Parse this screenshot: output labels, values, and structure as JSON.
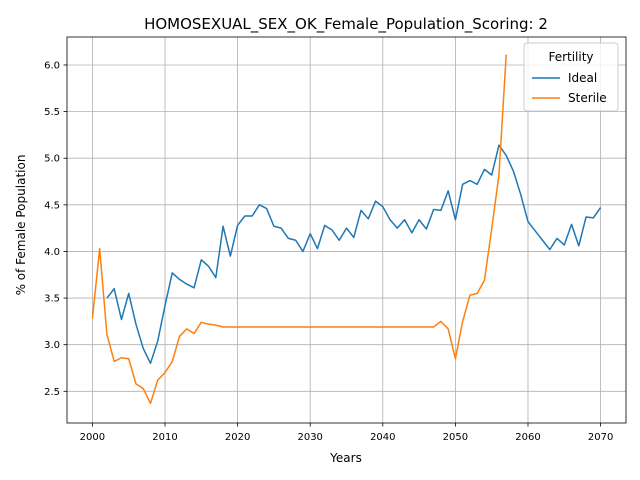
{
  "chart_data": {
    "type": "line",
    "title": "HOMOSEXUAL_SEX_OK_Female_Population_Scoring: 2",
    "xlabel": "Years",
    "ylabel": "% of Female Population",
    "xlim": [
      1996.5,
      2073.5
    ],
    "ylim": [
      2.16,
      6.3
    ],
    "xticks": [
      2000,
      2010,
      2020,
      2030,
      2040,
      2050,
      2060,
      2070
    ],
    "yticks": [
      2.5,
      3.0,
      3.5,
      4.0,
      4.5,
      5.0,
      5.5,
      6.0
    ],
    "ytick_labels": [
      "2.5",
      "3.0",
      "3.5",
      "4.0",
      "4.5",
      "5.0",
      "5.5",
      "6.0"
    ],
    "grid": true,
    "legend": {
      "title": "Fertility",
      "placement": "top-right"
    },
    "series": [
      {
        "name": "Ideal",
        "color": "#1f77b4",
        "x": [
          2002,
          2003,
          2004,
          2005,
          2006,
          2007,
          2008,
          2009,
          2010,
          2011,
          2012,
          2013,
          2014,
          2015,
          2016,
          2017,
          2018,
          2019,
          2020,
          2021,
          2022,
          2023,
          2024,
          2025,
          2026,
          2027,
          2028,
          2029,
          2030,
          2031,
          2032,
          2033,
          2034,
          2035,
          2036,
          2037,
          2038,
          2039,
          2040,
          2041,
          2042,
          2043,
          2044,
          2045,
          2046,
          2047,
          2048,
          2049,
          2050,
          2051,
          2052,
          2053,
          2054,
          2055,
          2056,
          2057,
          2058,
          2059,
          2060,
          2061,
          2062,
          2063,
          2064,
          2065,
          2066,
          2067,
          2068,
          2069,
          2070
        ],
        "values": [
          3.5,
          3.6,
          3.27,
          3.55,
          3.22,
          2.96,
          2.8,
          3.04,
          3.42,
          3.77,
          3.7,
          3.65,
          3.61,
          3.91,
          3.84,
          3.72,
          4.27,
          3.95,
          4.28,
          4.38,
          4.38,
          4.5,
          4.46,
          4.27,
          4.25,
          4.14,
          4.12,
          4.0,
          4.19,
          4.03,
          4.28,
          4.23,
          4.12,
          4.25,
          4.15,
          4.44,
          4.35,
          4.54,
          4.48,
          4.34,
          4.25,
          4.34,
          4.2,
          4.34,
          4.24,
          4.45,
          4.44,
          4.65,
          4.34,
          4.72,
          4.76,
          4.72,
          4.88,
          4.82,
          5.14,
          5.03,
          4.86,
          4.61,
          4.32,
          4.22,
          4.12,
          4.02,
          4.14,
          4.07,
          4.29,
          4.06,
          4.37,
          4.36,
          4.47
        ]
      },
      {
        "name": "Sterile",
        "color": "#ff7f0e",
        "x": [
          2000,
          2001,
          2002,
          2003,
          2004,
          2005,
          2006,
          2007,
          2008,
          2009,
          2010,
          2011,
          2012,
          2013,
          2014,
          2015,
          2016,
          2017,
          2018,
          2019,
          2020,
          2021,
          2022,
          2023,
          2024,
          2025,
          2026,
          2027,
          2028,
          2029,
          2030,
          2031,
          2032,
          2033,
          2034,
          2035,
          2036,
          2037,
          2038,
          2039,
          2040,
          2041,
          2042,
          2043,
          2044,
          2045,
          2046,
          2047,
          2048,
          2049,
          2050,
          2051,
          2052,
          2053,
          2054,
          2055,
          2056,
          2057
        ],
        "values": [
          3.28,
          4.03,
          3.11,
          2.82,
          2.86,
          2.85,
          2.58,
          2.53,
          2.37,
          2.62,
          2.7,
          2.82,
          3.09,
          3.17,
          3.12,
          3.24,
          3.22,
          3.21,
          3.19,
          3.19,
          3.19,
          3.19,
          3.19,
          3.19,
          3.19,
          3.19,
          3.19,
          3.19,
          3.19,
          3.19,
          3.19,
          3.19,
          3.19,
          3.19,
          3.19,
          3.19,
          3.19,
          3.19,
          3.19,
          3.19,
          3.19,
          3.19,
          3.19,
          3.19,
          3.19,
          3.19,
          3.19,
          3.19,
          3.25,
          3.17,
          2.85,
          3.25,
          3.53,
          3.55,
          3.69,
          4.24,
          4.82,
          6.11
        ]
      }
    ]
  }
}
